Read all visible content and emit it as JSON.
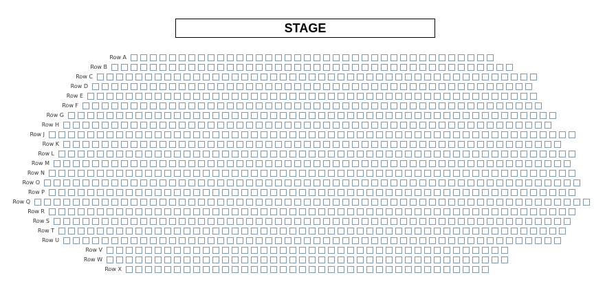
{
  "stage": {
    "label": "STAGE"
  },
  "colors": {
    "seat_border": "#7a97b5",
    "seat_fill": "#ffffff",
    "text": "#333333"
  },
  "rows": [
    {
      "label": "Row A",
      "seats": 38
    },
    {
      "label": "Row B",
      "seats": 42
    },
    {
      "label": "Row C",
      "seats": 46
    },
    {
      "label": "Row D",
      "seats": 46
    },
    {
      "label": "Row E",
      "seats": 47
    },
    {
      "label": "Row F",
      "seats": 48
    },
    {
      "label": "Row G",
      "seats": 51
    },
    {
      "label": "Row H",
      "seats": 51
    },
    {
      "label": "Row J",
      "seats": 55
    },
    {
      "label": "Row K",
      "seats": 52
    },
    {
      "label": "Row L",
      "seats": 54
    },
    {
      "label": "Row M",
      "seats": 54
    },
    {
      "label": "Row N",
      "seats": 55
    },
    {
      "label": "Row O",
      "seats": 56
    },
    {
      "label": "Row P",
      "seats": 55
    },
    {
      "label": "Row Q",
      "seats": 58
    },
    {
      "label": "Row R",
      "seats": 55
    },
    {
      "label": "Row S",
      "seats": 54
    },
    {
      "label": "Row T",
      "seats": 53
    },
    {
      "label": "Row U",
      "seats": 52
    },
    {
      "label": "Row V",
      "seats": 42
    },
    {
      "label": "Row W",
      "seats": 42
    },
    {
      "label": "Row X",
      "seats": 38
    }
  ]
}
